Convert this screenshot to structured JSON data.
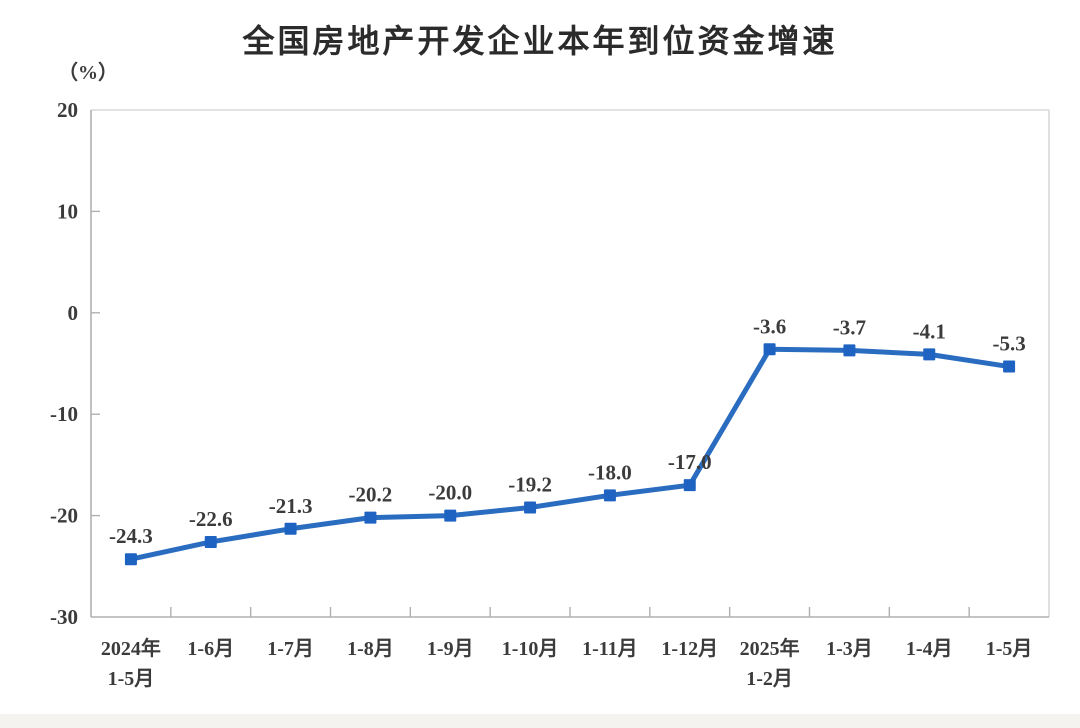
{
  "chart_data": {
    "type": "line",
    "title": "全国房地产开发企业本年到位资金增速",
    "unit_label": "（%）",
    "categories": [
      "2024年\n1-5月",
      "1-6月",
      "1-7月",
      "1-8月",
      "1-9月",
      "1-10月",
      "1-11月",
      "1-12月",
      "2025年\n1-2月",
      "1-3月",
      "1-4月",
      "1-5月"
    ],
    "values": [
      -24.3,
      -22.6,
      -21.3,
      -20.2,
      -20.0,
      -19.2,
      -18.0,
      -17.0,
      -3.6,
      -3.7,
      -4.1,
      -5.3
    ],
    "data_labels": [
      "-24.3",
      "-22.6",
      "-21.3",
      "-20.2",
      "-20.0",
      "-19.2",
      "-18.0",
      "-17.0",
      "-3.6",
      "-3.7",
      "-4.1",
      "-5.3"
    ],
    "yticks": [
      20,
      10,
      0,
      -10,
      -20,
      -30
    ],
    "ylim": [
      -30,
      20
    ],
    "grid": false,
    "legend": "none",
    "marker": "square",
    "colors": {
      "line": "#2a6cc0",
      "marker": "#1f63c2",
      "title_text": "#2b2b2b",
      "label_text": "#3b3b3b",
      "axis": "#b0b0b0",
      "border": "#d9d9d9",
      "footer_strip": "#f5f3f0"
    }
  }
}
